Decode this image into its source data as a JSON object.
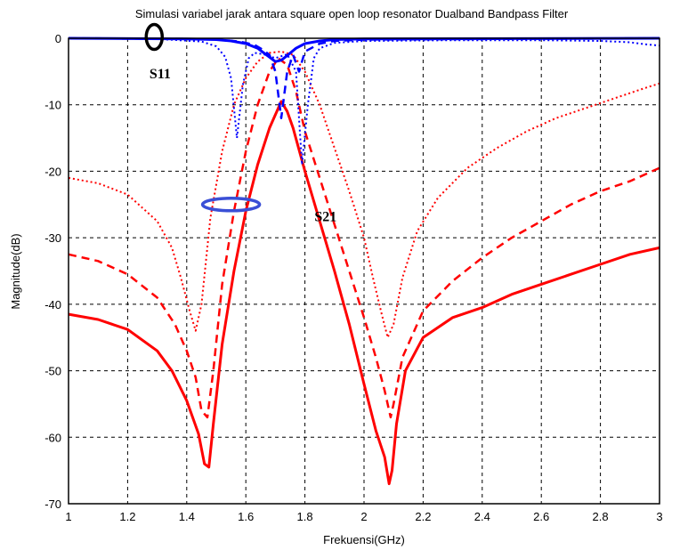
{
  "chart_data": {
    "type": "line",
    "title": "Simulasi variabel jarak antara square open loop resonator Dualband Bandpass Filter",
    "xlabel": "Frekuensi(GHz)",
    "ylabel": "Magnitude(dB)",
    "xlim": [
      1,
      3
    ],
    "ylim": [
      -70,
      0
    ],
    "xticks": [
      1,
      1.2,
      1.4,
      1.6,
      1.8,
      2,
      2.2,
      2.4,
      2.6,
      2.8,
      3
    ],
    "xtick_labels": [
      "1",
      "1.2",
      "1.4",
      "1.6",
      "1.8",
      "2",
      "2.2",
      "2.4",
      "2.6",
      "2.8",
      "3"
    ],
    "yticks": [
      0,
      -10,
      -20,
      -30,
      -40,
      -50,
      -60,
      -70
    ],
    "ytick_labels": [
      "0",
      "-10",
      "-20",
      "-30",
      "-40",
      "-50",
      "-60",
      "-70"
    ],
    "grid": true,
    "annotations": [
      {
        "text": "S11",
        "x": 1.31,
        "y": -6,
        "marker": "ellipse",
        "marker_x": 1.29,
        "marker_y": 0.2,
        "marker_color": "#000000"
      },
      {
        "text": "S21",
        "x": 1.87,
        "y": -27.5,
        "marker": "ellipse",
        "marker_x": 1.55,
        "marker_y": -25,
        "marker_color": "#3a4fd6"
      }
    ],
    "series": [
      {
        "group": "S21",
        "style": "solid",
        "color": "#ff0000",
        "x": [
          1.0,
          1.1,
          1.2,
          1.3,
          1.35,
          1.4,
          1.44,
          1.46,
          1.475,
          1.49,
          1.52,
          1.56,
          1.6,
          1.64,
          1.68,
          1.7,
          1.72,
          1.74,
          1.76,
          1.8,
          1.85,
          1.9,
          1.95,
          2.0,
          2.04,
          2.07,
          2.085,
          2.095,
          2.11,
          2.14,
          2.2,
          2.3,
          2.4,
          2.5,
          2.6,
          2.7,
          2.8,
          2.9,
          3.0
        ],
        "y": [
          -41.5,
          -42.3,
          -43.8,
          -47,
          -50,
          -54.5,
          -59.5,
          -64,
          -64.5,
          -58,
          -46,
          -35,
          -26,
          -19,
          -13.5,
          -11.5,
          -9.5,
          -11,
          -13.5,
          -20,
          -27.5,
          -35,
          -43,
          -52,
          -59,
          -63,
          -67,
          -65,
          -58,
          -50,
          -45,
          -42,
          -40.5,
          -38.5,
          -37,
          -35.5,
          -34,
          -32.5,
          -31.5
        ]
      },
      {
        "group": "S21",
        "style": "dashed",
        "color": "#ff0000",
        "x": [
          1.0,
          1.1,
          1.2,
          1.3,
          1.36,
          1.4,
          1.43,
          1.45,
          1.47,
          1.49,
          1.52,
          1.56,
          1.6,
          1.64,
          1.68,
          1.71,
          1.74,
          1.77,
          1.8,
          1.85,
          1.9,
          1.95,
          2.0,
          2.04,
          2.07,
          2.09,
          2.1,
          2.13,
          2.2,
          2.3,
          2.4,
          2.5,
          2.6,
          2.7,
          2.8,
          2.9,
          3.0
        ],
        "y": [
          -32.5,
          -33.5,
          -35.5,
          -39,
          -43,
          -47,
          -51,
          -56,
          -57,
          -50,
          -37,
          -26,
          -17,
          -10,
          -5,
          -3,
          -4,
          -8,
          -14,
          -21,
          -28,
          -35,
          -42,
          -48,
          -53,
          -57,
          -55,
          -48,
          -41,
          -36.5,
          -33,
          -30,
          -27.5,
          -25,
          -23,
          -21.5,
          -19.5
        ]
      },
      {
        "group": "S21",
        "style": "dotted",
        "color": "#ff0000",
        "x": [
          1.0,
          1.1,
          1.2,
          1.3,
          1.35,
          1.38,
          1.41,
          1.43,
          1.45,
          1.48,
          1.52,
          1.56,
          1.6,
          1.64,
          1.68,
          1.72,
          1.76,
          1.8,
          1.85,
          1.9,
          1.95,
          2.0,
          2.03,
          2.06,
          2.08,
          2.1,
          2.13,
          2.18,
          2.25,
          2.35,
          2.45,
          2.55,
          2.65,
          2.75,
          2.85,
          2.95,
          3.0
        ],
        "y": [
          -21,
          -21.8,
          -23.5,
          -27.5,
          -31.5,
          -36,
          -41,
          -44,
          -40,
          -27,
          -17,
          -10,
          -6,
          -3.5,
          -2.2,
          -2,
          -2.5,
          -5,
          -10,
          -16.5,
          -23,
          -30,
          -36,
          -41.5,
          -45,
          -43,
          -36,
          -29,
          -24,
          -19.5,
          -16.5,
          -14,
          -12,
          -10.5,
          -9,
          -7.5,
          -6.8
        ]
      },
      {
        "group": "S11",
        "style": "solid",
        "color": "#0000ff",
        "x": [
          1.0,
          1.4,
          1.5,
          1.55,
          1.6,
          1.64,
          1.67,
          1.7,
          1.72,
          1.74,
          1.77,
          1.8,
          1.85,
          1.9,
          2.0,
          2.5,
          3.0
        ],
        "y": [
          0,
          -0.1,
          -0.2,
          -0.4,
          -0.8,
          -1.5,
          -2.5,
          -3.5,
          -3.3,
          -2.6,
          -1.5,
          -0.8,
          -0.4,
          -0.2,
          -0.1,
          -0.05,
          0
        ]
      },
      {
        "group": "S11",
        "style": "dashed",
        "color": "#0000ff",
        "x": [
          1.0,
          1.4,
          1.5,
          1.58,
          1.63,
          1.66,
          1.68,
          1.7,
          1.72,
          1.74,
          1.76,
          1.78,
          1.8,
          1.85,
          1.9,
          2.0,
          2.5,
          3.0
        ],
        "y": [
          0,
          -0.1,
          -0.2,
          -0.5,
          -1,
          -1.8,
          -2.5,
          -5,
          -12,
          -5,
          -2.5,
          -5,
          -2,
          -0.8,
          -0.4,
          -0.2,
          -0.1,
          0
        ]
      },
      {
        "group": "S11",
        "style": "dotted",
        "color": "#0000ff",
        "x": [
          1.0,
          1.3,
          1.45,
          1.5,
          1.53,
          1.55,
          1.57,
          1.59,
          1.61,
          1.63,
          1.66,
          1.7,
          1.74,
          1.77,
          1.79,
          1.81,
          1.83,
          1.85,
          1.9,
          2.0,
          2.3,
          2.6,
          2.8,
          2.9,
          2.95,
          3.0
        ],
        "y": [
          0,
          -0.1,
          -0.5,
          -1.2,
          -2.8,
          -6,
          -15,
          -7,
          -3,
          -2.2,
          -2.4,
          -3,
          -2.4,
          -5,
          -19,
          -10,
          -3,
          -1.5,
          -0.7,
          -0.4,
          -0.3,
          -0.3,
          -0.4,
          -0.6,
          -0.9,
          -1.1
        ]
      }
    ]
  }
}
